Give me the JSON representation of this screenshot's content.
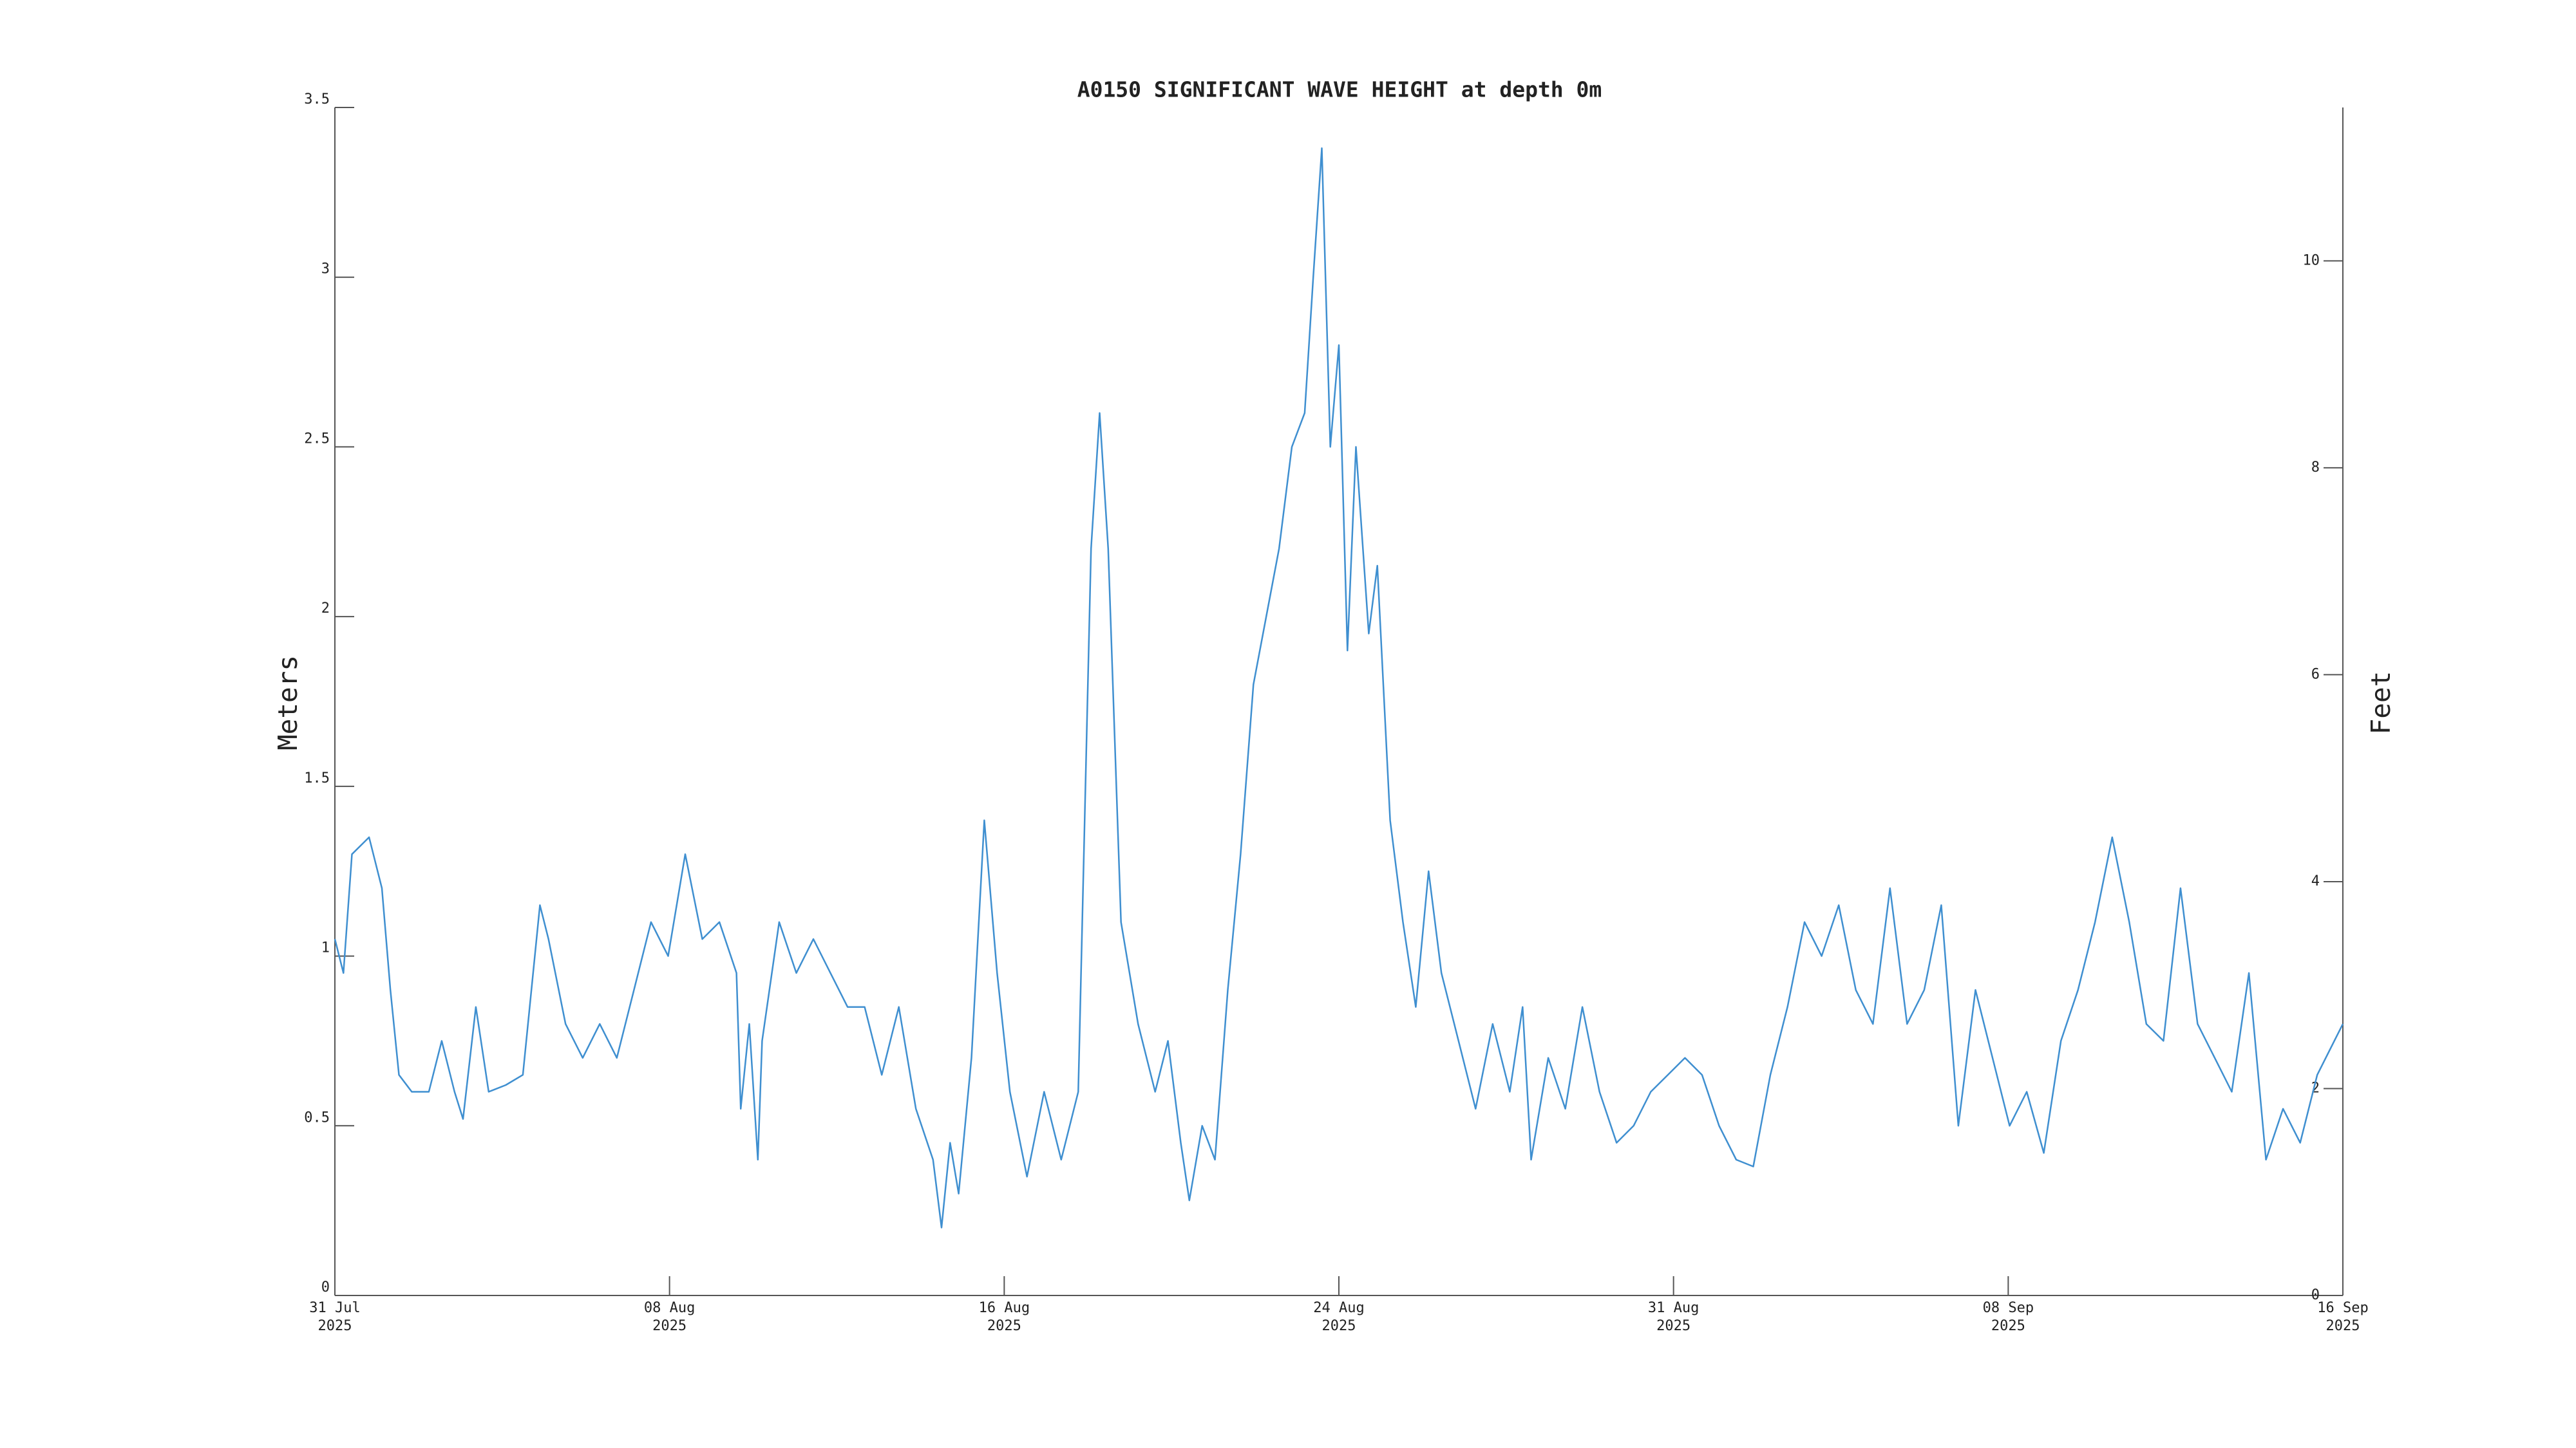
{
  "chart_data": {
    "type": "line",
    "title": "A0150 SIGNIFICANT WAVE HEIGHT at depth 0m",
    "ylabel": "Meters",
    "y2label": "Feet",
    "xlim": [
      0,
      47
    ],
    "xticks": [
      {
        "value": 0,
        "label": "31 Jul\n2025"
      },
      {
        "value": 7.833,
        "label": "08 Aug\n2025"
      },
      {
        "value": 15.667,
        "label": "16 Aug\n2025"
      },
      {
        "value": 23.5,
        "label": "24 Aug\n2025"
      },
      {
        "value": 31.333,
        "label": "31 Aug\n2025"
      },
      {
        "value": 39.167,
        "label": "08 Sep\n2025"
      },
      {
        "value": 47,
        "label": "16 Sep\n2025"
      }
    ],
    "ylim": [
      0,
      3.5
    ],
    "yticks": [
      0,
      0.5,
      1,
      1.5,
      2,
      2.5,
      3,
      3.5
    ],
    "y2lim": [
      0,
      11.4829
    ],
    "y2ticks": [
      0,
      2,
      4,
      6,
      8,
      10
    ],
    "series": [
      {
        "name": "Significant wave height",
        "color": "#3f8fd0",
        "x": [
          0,
          0.2,
          0.4,
          0.8,
          1.1,
          1.3,
          1.5,
          1.8,
          2.2,
          2.5,
          2.8,
          3.0,
          3.3,
          3.6,
          4.0,
          4.4,
          4.8,
          5.0,
          5.4,
          5.8,
          6.2,
          6.6,
          7.0,
          7.4,
          7.8,
          8.2,
          8.6,
          9.0,
          9.4,
          9.5,
          9.7,
          9.9,
          10.0,
          10.4,
          10.8,
          11.2,
          11.6,
          12.0,
          12.4,
          12.8,
          13.2,
          13.6,
          14.0,
          14.2,
          14.4,
          14.6,
          14.9,
          15.2,
          15.5,
          15.8,
          16.2,
          16.6,
          17.0,
          17.4,
          17.7,
          17.9,
          18.1,
          18.4,
          18.8,
          19.2,
          19.5,
          19.8,
          20.0,
          20.3,
          20.6,
          20.9,
          21.2,
          21.5,
          21.8,
          22.1,
          22.4,
          22.7,
          22.9,
          23.1,
          23.3,
          23.5,
          23.7,
          23.9,
          24.2,
          24.4,
          24.7,
          25.0,
          25.3,
          25.6,
          25.9,
          26.3,
          26.7,
          27.1,
          27.5,
          27.8,
          28.0,
          28.4,
          28.8,
          29.2,
          29.6,
          30.0,
          30.4,
          30.8,
          31.2,
          31.6,
          32.0,
          32.4,
          32.8,
          33.2,
          33.6,
          34.0,
          34.4,
          34.8,
          35.2,
          35.6,
          36.0,
          36.4,
          36.8,
          37.2,
          37.6,
          38.0,
          38.4,
          38.8,
          39.2,
          39.6,
          40.0,
          40.4,
          40.8,
          41.2,
          41.6,
          42.0,
          42.4,
          42.8,
          43.2,
          43.6,
          44.0,
          44.4,
          44.8,
          45.2,
          45.6,
          46.0,
          46.4,
          46.8,
          47.0
        ],
        "values": [
          1.05,
          0.95,
          1.3,
          1.35,
          1.2,
          0.9,
          0.65,
          0.6,
          0.6,
          0.75,
          0.6,
          0.52,
          0.85,
          0.6,
          0.62,
          0.65,
          1.15,
          1.05,
          0.8,
          0.7,
          0.8,
          0.7,
          0.9,
          1.1,
          1.0,
          1.3,
          1.05,
          1.1,
          0.95,
          0.55,
          0.8,
          0.4,
          0.75,
          1.1,
          0.95,
          1.05,
          0.95,
          0.85,
          0.85,
          0.65,
          0.85,
          0.55,
          0.4,
          0.2,
          0.45,
          0.3,
          0.7,
          1.4,
          0.95,
          0.6,
          0.35,
          0.6,
          0.4,
          0.6,
          2.2,
          2.6,
          2.2,
          1.1,
          0.8,
          0.6,
          0.75,
          0.45,
          0.28,
          0.5,
          0.4,
          0.9,
          1.3,
          1.8,
          2.0,
          2.2,
          2.5,
          2.6,
          3.0,
          3.38,
          2.5,
          2.8,
          1.9,
          2.5,
          1.95,
          2.15,
          1.4,
          1.1,
          0.85,
          1.25,
          0.95,
          0.75,
          0.55,
          0.8,
          0.6,
          0.85,
          0.4,
          0.7,
          0.55,
          0.85,
          0.6,
          0.45,
          0.5,
          0.6,
          0.65,
          0.7,
          0.65,
          0.5,
          0.4,
          0.38,
          0.65,
          0.85,
          1.1,
          1.0,
          1.15,
          0.9,
          0.8,
          1.2,
          0.8,
          0.9,
          1.15,
          0.5,
          0.9,
          0.7,
          0.5,
          0.6,
          0.42,
          0.75,
          0.9,
          1.1,
          1.35,
          1.1,
          0.8,
          0.75,
          1.2,
          0.8,
          0.7,
          0.6,
          0.95,
          0.4,
          0.55,
          0.45,
          0.65,
          0.75,
          0.8
        ]
      }
    ]
  }
}
